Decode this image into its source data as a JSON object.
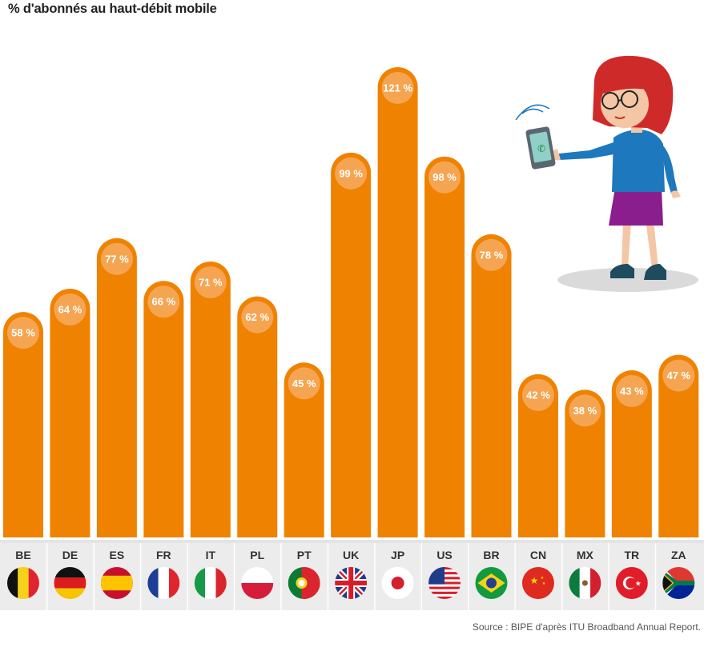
{
  "chart_data": {
    "type": "bar",
    "title": "% d'abonnés au haut-débit mobile",
    "categories": [
      "BE",
      "DE",
      "ES",
      "FR",
      "IT",
      "PL",
      "PT",
      "UK",
      "JP",
      "US",
      "BR",
      "CN",
      "MX",
      "TR",
      "ZA"
    ],
    "values": [
      58,
      64,
      77,
      66,
      71,
      62,
      45,
      99,
      121,
      98,
      78,
      42,
      38,
      43,
      47
    ],
    "value_labels": [
      "58 %",
      "64 %",
      "77 %",
      "66 %",
      "71 %",
      "62 %",
      "45 %",
      "99 %",
      "121 %",
      "98 %",
      "78 %",
      "42 %",
      "38 %",
      "43 %",
      "47 %"
    ],
    "flags": [
      "belgium-flag",
      "germany-flag",
      "spain-flag",
      "france-flag",
      "italy-flag",
      "poland-flag",
      "portugal-flag",
      "uk-flag",
      "japan-flag",
      "usa-flag",
      "brazil-flag",
      "china-flag",
      "mexico-flag",
      "turkey-flag",
      "south-africa-flag"
    ],
    "xlabel": "",
    "ylabel": "",
    "grid": false,
    "colors": {
      "bar": "#ef8200",
      "bubble": "#f5a552",
      "label": "#ffffff",
      "strip": "#ececec"
    }
  },
  "source": "Source : BIPE d'après ITU Broadband Annual Report.",
  "illustration": "woman-holding-phone-illustration"
}
